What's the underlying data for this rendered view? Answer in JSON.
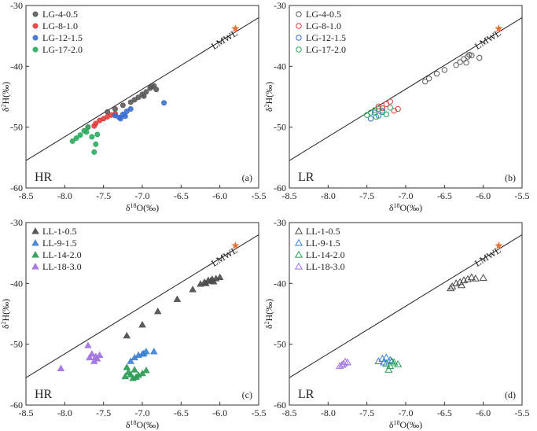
{
  "chart_data": [
    {
      "type": "scatter",
      "panel_label": "(a)",
      "corner_label": "HR",
      "xlabel": "δ18O(‰)",
      "ylabel": "δ2H(‰)",
      "xlim": [
        -8.5,
        -5.5
      ],
      "ylim": [
        -60,
        -30
      ],
      "x_ticks": [
        "-8.5",
        "-8.0",
        "-7.5",
        "-7.0",
        "-6.5",
        "-6.0",
        "-5.5"
      ],
      "y_ticks": [
        "-30",
        "-40",
        "-50",
        "-60"
      ],
      "line_label": "LMWL",
      "lmwl": {
        "x": [
          -8.5,
          -5.5
        ],
        "y": [
          -55.5,
          -32.0
        ]
      },
      "star": {
        "x": -5.8,
        "y": -33.8,
        "color": "#e8743b"
      },
      "marker": "circle",
      "filled": true,
      "series": [
        {
          "name": "LG-4-0.5",
          "color": "#5a5a5a",
          "x": [
            -6.85,
            -6.9,
            -6.95,
            -7.0,
            -7.05,
            -7.1,
            -7.15,
            -7.25,
            -7.35,
            -7.45,
            -6.82,
            -6.88,
            -6.98
          ],
          "y": [
            -43.2,
            -43.6,
            -44.2,
            -44.6,
            -45.1,
            -45.5,
            -45.9,
            -46.4,
            -47.0,
            -47.5,
            -43.8,
            -43.4,
            -44.9
          ]
        },
        {
          "name": "LG-8-1.0",
          "color": "#e63b3b",
          "x": [
            -7.35,
            -7.45,
            -7.55,
            -7.6,
            -7.5,
            -7.4,
            -7.7,
            -7.62
          ],
          "y": [
            -47.8,
            -48.3,
            -48.9,
            -49.4,
            -48.6,
            -48.0,
            -50.0,
            -49.8
          ]
        },
        {
          "name": "LG-12-1.5",
          "color": "#3a6fd0",
          "x": [
            -7.25,
            -7.3,
            -7.35,
            -7.2,
            -7.15,
            -7.28,
            -7.22,
            -6.72
          ],
          "y": [
            -47.9,
            -48.4,
            -48.1,
            -47.4,
            -47.0,
            -48.6,
            -48.2,
            -46.0
          ]
        },
        {
          "name": "LG-17-2.0",
          "color": "#2daa5f",
          "x": [
            -7.9,
            -7.85,
            -7.8,
            -7.75,
            -7.7,
            -7.72,
            -7.65,
            -7.6,
            -7.62,
            -7.58
          ],
          "y": [
            -52.3,
            -51.8,
            -51.3,
            -50.6,
            -50.0,
            -50.8,
            -51.6,
            -52.8,
            -54.1,
            -51.2
          ]
        }
      ]
    },
    {
      "type": "scatter",
      "panel_label": "(b)",
      "corner_label": "LR",
      "xlabel": "δ18O(‰)",
      "ylabel": "δ2H(‰)",
      "xlim": [
        -8.5,
        -5.5
      ],
      "ylim": [
        -60,
        -30
      ],
      "x_ticks": [
        "-8.5",
        "-8.0",
        "-7.5",
        "-7.0",
        "-6.5",
        "-6.0",
        "-5.5"
      ],
      "y_ticks": [
        "-30",
        "-40",
        "-50",
        "-60"
      ],
      "line_label": "LMWL",
      "lmwl": {
        "x": [
          -8.5,
          -5.5
        ],
        "y": [
          -55.5,
          -32.0
        ]
      },
      "star": {
        "x": -5.8,
        "y": -33.8,
        "color": "#e8743b"
      },
      "marker": "circle",
      "filled": false,
      "series": [
        {
          "name": "LG-4-0.5",
          "color": "#5a5a5a",
          "x": [
            -6.2,
            -6.25,
            -6.3,
            -6.35,
            -6.15,
            -6.05,
            -6.5,
            -6.6,
            -6.7,
            -6.75,
            -6.22,
            -6.18
          ],
          "y": [
            -38.4,
            -38.8,
            -39.3,
            -39.8,
            -38.2,
            -38.6,
            -40.6,
            -41.2,
            -42.0,
            -42.5,
            -39.4,
            -38.1
          ]
        },
        {
          "name": "LG-8-1.0",
          "color": "#e63b3b",
          "x": [
            -7.2,
            -7.25,
            -7.3,
            -7.15,
            -7.35,
            -7.1
          ],
          "y": [
            -45.8,
            -46.2,
            -46.9,
            -47.3,
            -46.6,
            -47.0
          ]
        },
        {
          "name": "LG-12-1.5",
          "color": "#3a6fd0",
          "x": [
            -7.4,
            -7.35,
            -7.3,
            -7.45,
            -7.25
          ],
          "y": [
            -47.6,
            -48.1,
            -47.3,
            -48.6,
            -47.9
          ]
        },
        {
          "name": "LG-17-2.0",
          "color": "#2daa5f",
          "x": [
            -7.5,
            -7.45,
            -7.4,
            -7.35,
            -7.3,
            -7.25,
            -7.2,
            -7.38
          ],
          "y": [
            -48.0,
            -47.6,
            -47.2,
            -47.0,
            -47.5,
            -47.9,
            -46.8,
            -48.3
          ]
        }
      ]
    },
    {
      "type": "scatter",
      "panel_label": "(c)",
      "corner_label": "HR",
      "xlabel": "δ18O(‰)",
      "ylabel": "δ2H(‰)",
      "xlim": [
        -8.5,
        -5.5
      ],
      "ylim": [
        -60,
        -30
      ],
      "x_ticks": [
        "-8.5",
        "-8.0",
        "-7.5",
        "-7.0",
        "-6.5",
        "-6.0",
        "-5.5"
      ],
      "y_ticks": [
        "-30",
        "-40",
        "-50",
        "-60"
      ],
      "line_label": "LMWL",
      "lmwl": {
        "x": [
          -8.5,
          -5.5
        ],
        "y": [
          -55.5,
          -32.0
        ]
      },
      "star": {
        "x": -5.8,
        "y": -33.8,
        "color": "#e8743b"
      },
      "marker": "triangle",
      "filled": true,
      "series": [
        {
          "name": "LL-1-0.5",
          "color": "#4a4a4a",
          "x": [
            -6.2,
            -6.15,
            -6.1,
            -6.05,
            -6.0,
            -6.12,
            -6.25,
            -6.35,
            -6.55,
            -6.8,
            -7.0,
            -7.2,
            -6.08,
            -6.18
          ],
          "y": [
            -39.8,
            -39.5,
            -39.3,
            -39.2,
            -39.0,
            -39.6,
            -40.1,
            -41.0,
            -42.6,
            -44.6,
            -46.8,
            -48.6,
            -39.7,
            -40.0
          ]
        },
        {
          "name": "LL-9-1.5",
          "color": "#3a7fd5",
          "x": [
            -7.0,
            -6.95,
            -7.05,
            -6.98,
            -7.1,
            -7.15,
            -6.85
          ],
          "y": [
            -51.6,
            -51.2,
            -51.8,
            -51.5,
            -52.2,
            -52.8,
            -51.2
          ]
        },
        {
          "name": "LL-14-2.0",
          "color": "#2a9a52",
          "x": [
            -7.2,
            -7.18,
            -7.15,
            -7.1,
            -7.05,
            -7.0,
            -6.95,
            -7.22,
            -7.12,
            -7.08
          ],
          "y": [
            -53.8,
            -54.6,
            -55.0,
            -54.2,
            -55.1,
            -54.8,
            -54.3,
            -55.3,
            -55.6,
            -55.4
          ]
        },
        {
          "name": "LL-18-3.0",
          "color": "#a070e0",
          "x": [
            -7.65,
            -7.6,
            -7.58,
            -7.62,
            -7.55,
            -7.68,
            -7.7,
            -8.05
          ],
          "y": [
            -51.6,
            -52.0,
            -52.4,
            -52.8,
            -51.8,
            -52.2,
            -50.2,
            -54.0
          ]
        }
      ]
    },
    {
      "type": "scatter",
      "panel_label": "(d)",
      "corner_label": "LR",
      "xlabel": "δ18O(‰)",
      "ylabel": "δ2H(‰)",
      "xlim": [
        -8.5,
        -5.5
      ],
      "ylim": [
        -60,
        -30
      ],
      "x_ticks": [
        "-8.5",
        "-8.0",
        "-7.5",
        "-7.0",
        "-6.5",
        "-6.0",
        "-5.5"
      ],
      "y_ticks": [
        "-30",
        "-40",
        "-50",
        "-60"
      ],
      "line_label": "LMWL",
      "lmwl": {
        "x": [
          -8.5,
          -5.5
        ],
        "y": [
          -55.5,
          -32.0
        ]
      },
      "star": {
        "x": -5.8,
        "y": -33.8,
        "color": "#e8743b"
      },
      "marker": "triangle",
      "filled": false,
      "series": [
        {
          "name": "LL-1-0.5",
          "color": "#4a4a4a",
          "x": [
            -6.4,
            -6.35,
            -6.3,
            -6.25,
            -6.2,
            -6.15,
            -6.1,
            -6.0,
            -6.42,
            -6.28
          ],
          "y": [
            -40.5,
            -40.0,
            -39.8,
            -39.5,
            -39.3,
            -39.0,
            -39.2,
            -39.1,
            -40.8,
            -40.3
          ]
        },
        {
          "name": "LL-9-1.5",
          "color": "#3a7fd5",
          "x": [
            -7.35,
            -7.3,
            -7.25,
            -7.2,
            -7.28
          ],
          "y": [
            -52.8,
            -52.4,
            -52.2,
            -52.6,
            -53.0
          ]
        },
        {
          "name": "LL-14-2.0",
          "color": "#2a9a52",
          "x": [
            -7.25,
            -7.2,
            -7.15,
            -7.1,
            -7.18,
            -7.22
          ],
          "y": [
            -53.2,
            -53.6,
            -53.0,
            -53.3,
            -52.8,
            -54.2
          ]
        },
        {
          "name": "LL-18-3.0",
          "color": "#a070e0",
          "x": [
            -7.85,
            -7.8,
            -7.75,
            -7.82,
            -7.78
          ],
          "y": [
            -53.6,
            -53.2,
            -53.0,
            -53.4,
            -52.9
          ]
        }
      ]
    }
  ]
}
